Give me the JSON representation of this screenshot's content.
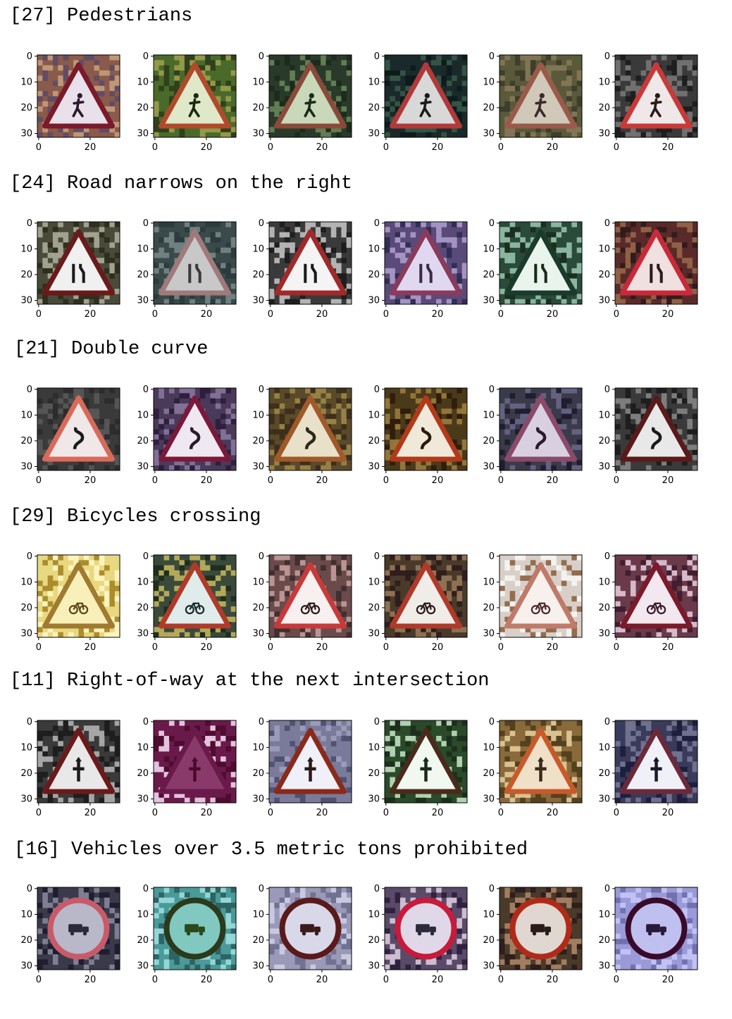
{
  "axes": {
    "yticks": [
      "0",
      "10",
      "20",
      "30"
    ],
    "xticks": [
      "0",
      "20"
    ]
  },
  "rows": [
    {
      "heading": "[27] Pedestrians",
      "sign": "triangle",
      "symbol": "pedestrian",
      "images": [
        {
          "bg": [
            "#8a5a4a",
            "#c9a27c",
            "#5b4a6a"
          ],
          "border": "#7a1a2a",
          "fill": "#e8e0ea",
          "ink": "#2a1a2a"
        },
        {
          "bg": [
            "#4a6a2a",
            "#a0a050",
            "#2a3a1a"
          ],
          "border": "#b04a2a",
          "fill": "#dfe8c8",
          "ink": "#1a2a10"
        },
        {
          "bg": [
            "#2a3a2a",
            "#6a8a5a",
            "#1a2a1a"
          ],
          "border": "#8a4a3a",
          "fill": "#c8d8b8",
          "ink": "#1a2a1a"
        },
        {
          "bg": [
            "#1a2a2a",
            "#3a5a4a",
            "#0a1a1a"
          ],
          "border": "#b03a3a",
          "fill": "#d8d8d8",
          "ink": "#1a1a1a"
        },
        {
          "bg": [
            "#5a5a3a",
            "#8a7a5a",
            "#3a3a2a"
          ],
          "border": "#9a5a4a",
          "fill": "#d0c8b8",
          "ink": "#3a2a2a"
        },
        {
          "bg": [
            "#3a3a3a",
            "#7a7a7a",
            "#1a1a1a"
          ],
          "border": "#c83a3a",
          "fill": "#f0e8e8",
          "ink": "#2a1a1a"
        }
      ]
    },
    {
      "heading": "[24] Road narrows on the right",
      "sign": "triangle",
      "symbol": "narrows",
      "images": [
        {
          "bg": [
            "#4a4a3a",
            "#b0b0a0",
            "#2a2a1a"
          ],
          "border": "#6a1a1a",
          "fill": "#f0f0f0",
          "ink": "#1a1a1a"
        },
        {
          "bg": [
            "#3a4a4a",
            "#7a8a8a",
            "#2a3a3a"
          ],
          "border": "#a07a7a",
          "fill": "#c8c8c8",
          "ink": "#3a3a3a"
        },
        {
          "bg": [
            "#3a3a3a",
            "#c8c8c8",
            "#1a1a1a"
          ],
          "border": "#a02a2a",
          "fill": "#f4f4f4",
          "ink": "#1a1a1a"
        },
        {
          "bg": [
            "#5a4a7a",
            "#b0a0d0",
            "#2a2a4a"
          ],
          "border": "#8a3a5a",
          "fill": "#e0d8f0",
          "ink": "#3a2a4a"
        },
        {
          "bg": [
            "#2a4a3a",
            "#9ac8b0",
            "#1a2a1a"
          ],
          "border": "#1a3a2a",
          "fill": "#e8f4ec",
          "ink": "#1a2a1a"
        },
        {
          "bg": [
            "#5a2a2a",
            "#9a6a4a",
            "#2a1a1a"
          ],
          "border": "#c82a3a",
          "fill": "#f0e0e0",
          "ink": "#2a1a1a"
        }
      ]
    },
    {
      "heading": "[21] Double curve",
      "sign": "triangle",
      "symbol": "curve",
      "images": [
        {
          "bg": [
            "#3a3a3a",
            "#5a5a5a",
            "#2a2a2a"
          ],
          "border": "#d86a5a",
          "fill": "#f0e8e8",
          "ink": "#1a1a1a"
        },
        {
          "bg": [
            "#4a3a5a",
            "#8a7aa0",
            "#2a1a3a"
          ],
          "border": "#7a1a3a",
          "fill": "#f0e8f0",
          "ink": "#2a1a2a"
        },
        {
          "bg": [
            "#5a4a2a",
            "#a08a4a",
            "#3a2a1a"
          ],
          "border": "#a05a2a",
          "fill": "#e8e0c8",
          "ink": "#2a2a1a"
        },
        {
          "bg": [
            "#4a3a1a",
            "#a08040",
            "#2a1a0a"
          ],
          "border": "#b03a1a",
          "fill": "#f0e8d8",
          "ink": "#2a1a0a"
        },
        {
          "bg": [
            "#3a3a4a",
            "#6a6a8a",
            "#1a1a2a"
          ],
          "border": "#8a4a6a",
          "fill": "#d8d0e0",
          "ink": "#2a1a2a"
        },
        {
          "bg": [
            "#3a3a3a",
            "#8a8a8a",
            "#1a1a1a"
          ],
          "border": "#5a1a1a",
          "fill": "#e8e8e8",
          "ink": "#1a1a1a"
        }
      ]
    },
    {
      "heading": "[29] Bicycles crossing",
      "sign": "triangle",
      "symbol": "bicycle",
      "images": [
        {
          "bg": [
            "#e8d880",
            "#fff8c8",
            "#a08020"
          ],
          "border": "#a07a30",
          "fill": "#f8f0b8",
          "ink": "#5a4a1a"
        },
        {
          "bg": [
            "#3a4a3a",
            "#c8b860",
            "#1a2a1a"
          ],
          "border": "#b03a2a",
          "fill": "#e0ecec",
          "ink": "#1a2a2a"
        },
        {
          "bg": [
            "#6a4a4a",
            "#c8a0a0",
            "#3a2a2a"
          ],
          "border": "#c83a3a",
          "fill": "#f8f0f0",
          "ink": "#2a1a1a"
        },
        {
          "bg": [
            "#4a3a2a",
            "#9a7a5a",
            "#2a1a1a"
          ],
          "border": "#b03a2a",
          "fill": "#f0ece8",
          "ink": "#2a1a1a"
        },
        {
          "bg": [
            "#d8d0c8",
            "#f8f8f8",
            "#8a5a3a"
          ],
          "border": "#c07a6a",
          "fill": "#f8f0ec",
          "ink": "#4a2a2a"
        },
        {
          "bg": [
            "#6a3a4a",
            "#e8d0e0",
            "#3a1a2a"
          ],
          "border": "#7a1a2a",
          "fill": "#f4e8f0",
          "ink": "#3a1a2a"
        }
      ]
    },
    {
      "heading": "[11] Right-of-way at the next intersection",
      "sign": "triangle",
      "symbol": "crossing",
      "images": [
        {
          "bg": [
            "#3a3a3a",
            "#b8b8b8",
            "#1a1a1a"
          ],
          "border": "#6a1a1a",
          "fill": "#e8e8e8",
          "ink": "#1a1a1a"
        },
        {
          "bg": [
            "#6a1a4a",
            "#f8e0f8",
            "#4a0a2a"
          ],
          "border": "#6a1a4a",
          "fill": "#8a3a6a",
          "ink": "#4a0a2a"
        },
        {
          "bg": [
            "#7a7a9a",
            "#a0a0c0",
            "#4a4a6a"
          ],
          "border": "#8a2a1a",
          "fill": "#f0f0f8",
          "ink": "#2a1a1a"
        },
        {
          "bg": [
            "#2a4a2a",
            "#c8e8c8",
            "#1a2a1a"
          ],
          "border": "#4a2a1a",
          "fill": "#f0f8f0",
          "ink": "#1a2a1a"
        },
        {
          "bg": [
            "#8a6a3a",
            "#e8d0a0",
            "#4a3a1a"
          ],
          "border": "#c85a2a",
          "fill": "#f0e0c8",
          "ink": "#3a2a1a"
        },
        {
          "bg": [
            "#3a3a5a",
            "#7a7a9a",
            "#1a1a3a"
          ],
          "border": "#6a2a3a",
          "fill": "#f0f0f8",
          "ink": "#1a1a2a"
        }
      ]
    },
    {
      "heading": "[16] Vehicles over 3.5 metric tons prohibited",
      "sign": "circle",
      "symbol": "truck",
      "images": [
        {
          "bg": [
            "#3a3a4a",
            "#8a8aa0",
            "#1a1a2a"
          ],
          "border": "#c85a6a",
          "fill": "#b8b8c8",
          "ink": "#2a2a3a"
        },
        {
          "bg": [
            "#4a9a9a",
            "#a0e0e0",
            "#2a5a5a"
          ],
          "border": "#2a3a1a",
          "fill": "#80c8c0",
          "ink": "#2a4a1a"
        },
        {
          "bg": [
            "#9a9ab8",
            "#d0d0e8",
            "#6a6a8a"
          ],
          "border": "#5a1a1a",
          "fill": "#d8d8e8",
          "ink": "#3a1a1a"
        },
        {
          "bg": [
            "#5a4a6a",
            "#e0d0e0",
            "#2a1a3a"
          ],
          "border": "#c81a3a",
          "fill": "#e0d8e8",
          "ink": "#2a2a3a"
        },
        {
          "bg": [
            "#4a3a2a",
            "#b08a6a",
            "#2a1a1a"
          ],
          "border": "#b02a1a",
          "fill": "#e0d8d0",
          "ink": "#2a1a1a"
        },
        {
          "bg": [
            "#9a9ad8",
            "#c8c8f8",
            "#6a6aa8"
          ],
          "border": "#3a0a2a",
          "fill": "#c0c0f0",
          "ink": "#2a1a3a"
        }
      ]
    }
  ]
}
